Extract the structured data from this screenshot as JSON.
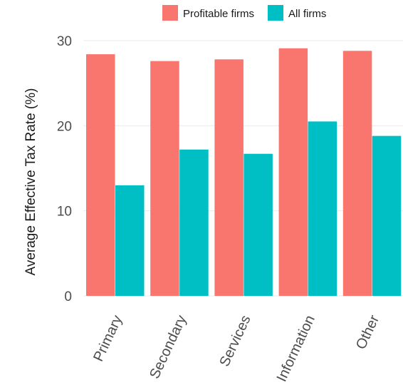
{
  "chart_data": {
    "type": "bar",
    "title": "",
    "xlabel": "",
    "ylabel": "Average Effective Tax Rate (%)",
    "categories": [
      "Primary",
      "Secondary",
      "Services",
      "Information",
      "Other"
    ],
    "series": [
      {
        "name": "Profitable firms",
        "values": [
          28.4,
          27.6,
          27.8,
          29.1,
          28.8
        ],
        "color": "#F8766D"
      },
      {
        "name": "All firms",
        "values": [
          13.0,
          17.2,
          16.7,
          20.5,
          18.8
        ],
        "color": "#00BFC4"
      }
    ],
    "yticks": [
      0,
      10,
      20,
      30
    ],
    "ylim": [
      0,
      31.5
    ],
    "grid": true,
    "legend_position": "top"
  }
}
